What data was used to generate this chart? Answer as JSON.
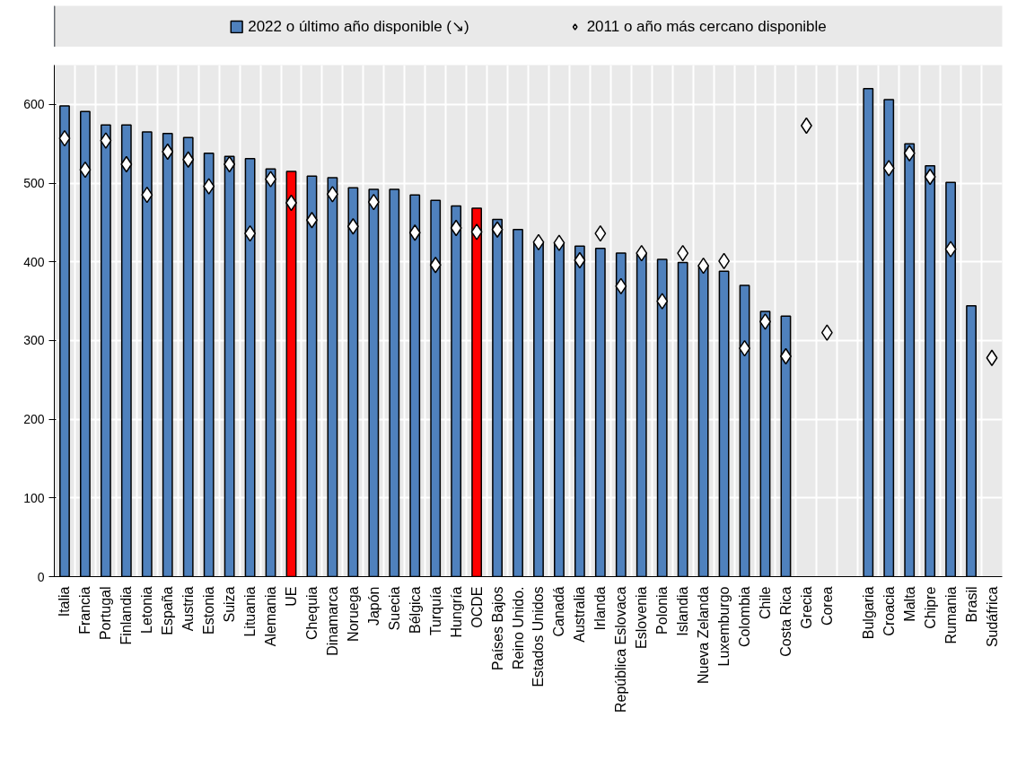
{
  "chart_data": {
    "type": "bar",
    "categories": [
      "Italia",
      "Francia",
      "Portugal",
      "Finlandia",
      "Letonia",
      "España",
      "Austria",
      "Estonia",
      "Suiza",
      "Lituania",
      "Alemania",
      "UE",
      "Chequia",
      "Dinamarca",
      "Noruega",
      "Japón",
      "Suecia",
      "Bélgica",
      "Turquía",
      "Hungría",
      "OCDE",
      "Países Bajos",
      "Reino Unido.",
      "Estados Unidos",
      "Canadá",
      "Australia",
      "Irlanda",
      "República Eslovaca",
      "Eslovenia",
      "Polonia",
      "Islandia",
      "Nueva Zelanda",
      "Luxemburgo",
      "Colombia",
      "Chile",
      "Costa Rica",
      "Grecia",
      "Corea",
      null,
      "Bulgaria",
      "Croacia",
      "Malta",
      "Chipre",
      "Rumania",
      "Brasil",
      "Sudáfrica"
    ],
    "series": [
      {
        "name": "2022 o último año disponible (↘)",
        "type": "bar",
        "color": "#4f81bd",
        "colors": [
          "#4f81bd",
          "#4f81bd",
          "#4f81bd",
          "#4f81bd",
          "#4f81bd",
          "#4f81bd",
          "#4f81bd",
          "#4f81bd",
          "#4f81bd",
          "#4f81bd",
          "#4f81bd",
          "#ff0000",
          "#4f81bd",
          "#4f81bd",
          "#4f81bd",
          "#4f81bd",
          "#4f81bd",
          "#4f81bd",
          "#4f81bd",
          "#4f81bd",
          "#ff0000",
          "#4f81bd",
          "#4f81bd",
          "#4f81bd",
          "#4f81bd",
          "#4f81bd",
          "#4f81bd",
          "#4f81bd",
          "#4f81bd",
          "#4f81bd",
          "#4f81bd",
          "#4f81bd",
          "#4f81bd",
          "#4f81bd",
          "#4f81bd",
          "#4f81bd",
          "#4f81bd",
          "#4f81bd",
          "#4f81bd",
          "#4f81bd",
          "#4f81bd",
          "#4f81bd",
          "#4f81bd",
          "#4f81bd",
          "#4f81bd",
          "#4f81bd"
        ],
        "values": [
          598,
          591,
          574,
          574,
          565,
          563,
          558,
          538,
          534,
          531,
          518,
          515,
          509,
          507,
          494,
          492,
          492,
          485,
          478,
          471,
          468,
          454,
          441,
          424,
          424,
          420,
          417,
          411,
          410,
          403,
          399,
          395,
          388,
          370,
          337,
          331,
          null,
          null,
          null,
          620,
          606,
          550,
          522,
          501,
          344,
          null
        ]
      },
      {
        "name": "2011 o año más cercano disponible",
        "type": "scatter",
        "marker": "diamond",
        "color": "#ffffff",
        "values": [
          557,
          517,
          554,
          524,
          485,
          540,
          530,
          496,
          524,
          436,
          505,
          475,
          453,
          486,
          445,
          476,
          null,
          437,
          396,
          443,
          438,
          441,
          null,
          425,
          424,
          402,
          436,
          369,
          411,
          350,
          411,
          395,
          401,
          290,
          324,
          280,
          573,
          310,
          null,
          null,
          519,
          538,
          508,
          416,
          null,
          278
        ]
      }
    ],
    "ylim": [
      0,
      650
    ],
    "yticks": [
      0,
      100,
      200,
      300,
      400,
      500,
      600
    ],
    "grid": true,
    "legend": "top"
  }
}
